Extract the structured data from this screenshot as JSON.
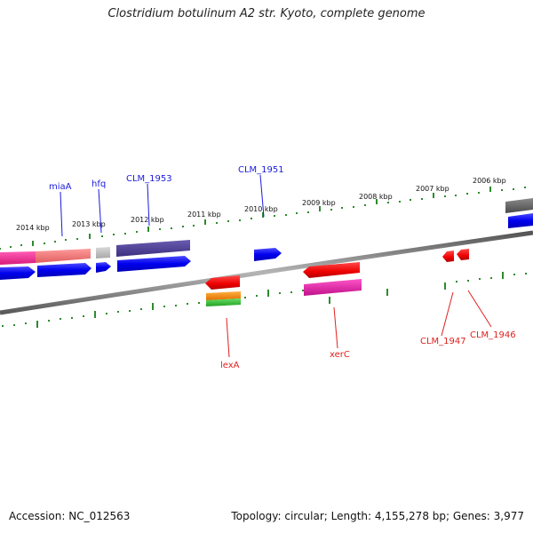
{
  "title": "Clostridium botulinum A2 str. Kyoto, complete genome",
  "footer": {
    "accession": "Accession: NC_012563",
    "summary": "Topology: circular; Length: 4,155,278 bp; Genes: 3,977"
  },
  "colors": {
    "backbone": "#7a7a7a",
    "tick_green": "#2e8b2e",
    "label_blue": "#1a1adb",
    "label_red": "#e02020"
  },
  "kbp_labels": [
    "2014 kbp",
    "2013 kbp",
    "2012 kbp",
    "2011 kbp",
    "2010 kbp",
    "2009 kbp",
    "2008 kbp",
    "2007 kbp",
    "2006 kbp"
  ],
  "gene_labels": {
    "miaA": "miaA",
    "hfq": "hfq",
    "CLM_1953": "CLM_1953",
    "CLM_1951": "CLM_1951",
    "lexA": "lexA",
    "xerC": "xerC",
    "CLM_1947": "CLM_1947",
    "CLM_1946": "CLM_1946"
  }
}
